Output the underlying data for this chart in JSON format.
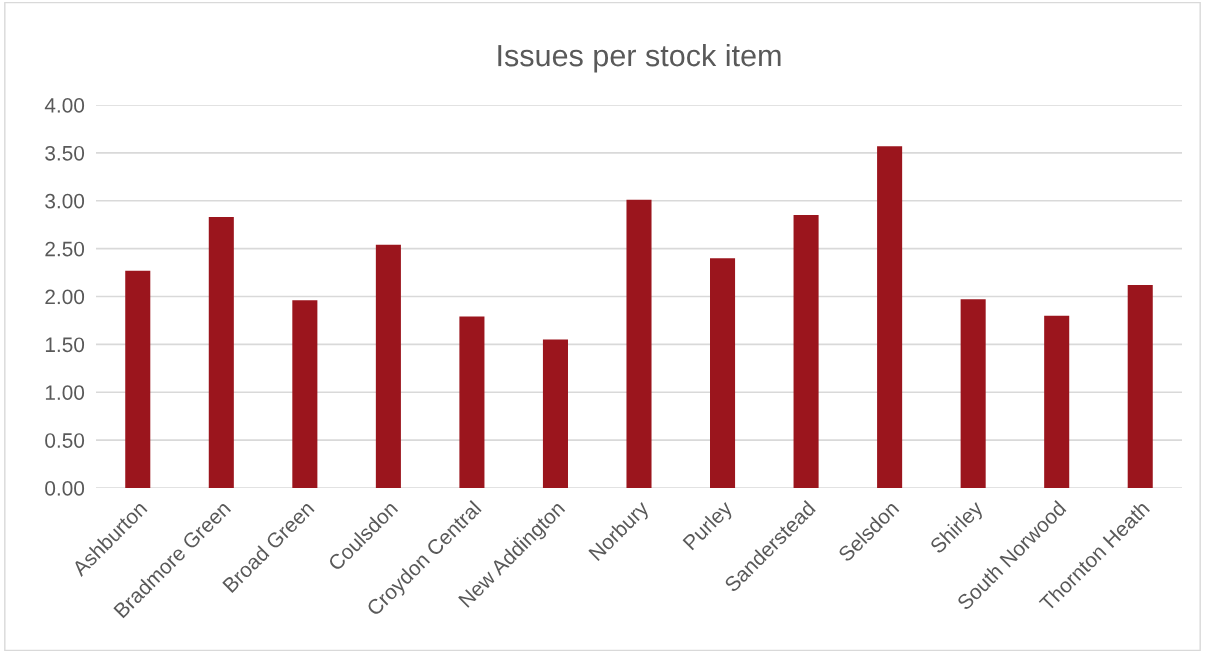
{
  "chart_data": {
    "type": "bar",
    "title": "Issues per stock item",
    "categories": [
      "Ashburton",
      "Bradmore Green",
      "Broad Green",
      "Coulsdon",
      "Croydon Central",
      "New Addington",
      "Norbury",
      "Purley",
      "Sanderstead",
      "Selsdon",
      "Shirley",
      "South Norwood",
      "Thornton Heath"
    ],
    "values": [
      2.27,
      2.83,
      1.96,
      2.54,
      1.79,
      1.55,
      3.01,
      2.4,
      2.85,
      3.57,
      1.97,
      1.8,
      2.12
    ],
    "color": "#9b151d",
    "ylim": [
      0,
      4
    ],
    "yticks": [
      {
        "value": 0,
        "label": "0.00"
      },
      {
        "value": 0.5,
        "label": "0.50"
      },
      {
        "value": 1,
        "label": "1.00"
      },
      {
        "value": 1.5,
        "label": "1.50"
      },
      {
        "value": 2,
        "label": "2.00"
      },
      {
        "value": 2.5,
        "label": "2.50"
      },
      {
        "value": 3,
        "label": "3.00"
      },
      {
        "value": 3.5,
        "label": "3.50"
      },
      {
        "value": 4,
        "label": "4.00"
      }
    ],
    "grid": "y",
    "legend": false
  }
}
